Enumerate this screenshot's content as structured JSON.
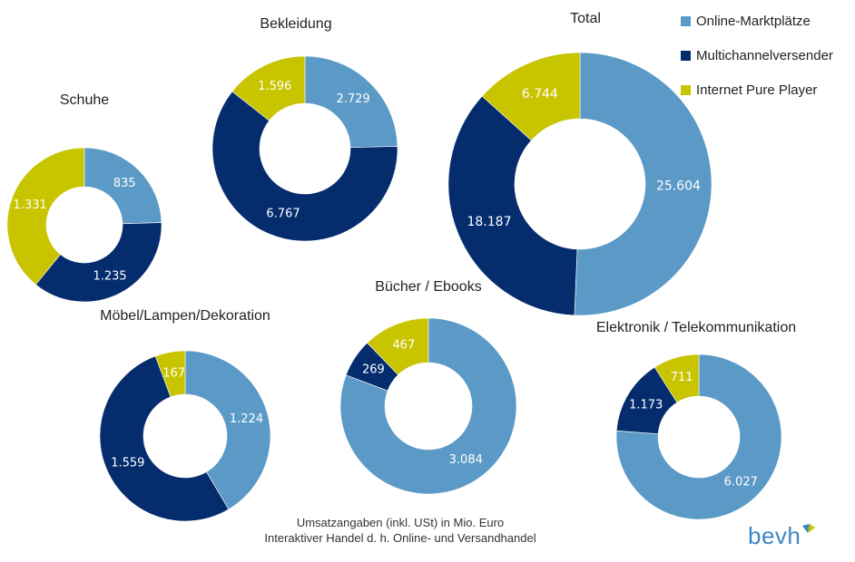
{
  "colors": {
    "online": "#5b9ac6",
    "multichannel": "#052d6e",
    "pure": "#c8c400",
    "label_dark": "#ffffff",
    "label_light": "#ffffff"
  },
  "legend": [
    {
      "label": "Online-Marktplätze",
      "color": "#5b9ac6"
    },
    {
      "label": "Multichannelversender",
      "color": "#052d6e"
    },
    {
      "label": "Internet Pure Player",
      "color": "#c8c400"
    }
  ],
  "chart_data": [
    {
      "type": "pie",
      "title": "Schuhe",
      "series": [
        "Online-Marktplätze",
        "Multichannelversender",
        "Internet Pure Player"
      ],
      "values": [
        835,
        1235,
        1331
      ],
      "labels": [
        "835",
        "1.235",
        "1.331"
      ]
    },
    {
      "type": "pie",
      "title": "Bekleidung",
      "series": [
        "Online-Marktplätze",
        "Multichannelversender",
        "Internet Pure Player"
      ],
      "values": [
        2729,
        6767,
        1596
      ],
      "labels": [
        "2.729",
        "6.767",
        "1.596"
      ]
    },
    {
      "type": "pie",
      "title": "Total",
      "series": [
        "Online-Marktplätze",
        "Multichannelversender",
        "Internet Pure Player"
      ],
      "values": [
        25604,
        18187,
        6744
      ],
      "labels": [
        "25.604",
        "18.187",
        "6.744"
      ]
    },
    {
      "type": "pie",
      "title": "Möbel/Lampen/Dekoration",
      "series": [
        "Online-Marktplätze",
        "Multichannelversender",
        "Internet Pure Player"
      ],
      "values": [
        1224,
        1559,
        167
      ],
      "labels": [
        "1.224",
        "1.559",
        "167"
      ]
    },
    {
      "type": "pie",
      "title": "Bücher / Ebooks",
      "series": [
        "Online-Marktplätze",
        "Multichannelversender",
        "Internet Pure Player"
      ],
      "values": [
        3084,
        269,
        467
      ],
      "labels": [
        "3.084",
        "269",
        "467"
      ]
    },
    {
      "type": "pie",
      "title": "Elektronik / Telekommunikation",
      "series": [
        "Online-Marktplätze",
        "Multichannelversender",
        "Internet Pure Player"
      ],
      "values": [
        6027,
        1173,
        711
      ],
      "labels": [
        "6.027",
        "1.173",
        "711"
      ]
    }
  ],
  "footer": {
    "line1": "Umsatzangaben (inkl. USt) in Mio. Euro",
    "line2": "Interaktiver Handel d. h. Online- und Versandhandel"
  },
  "logo": {
    "text": "bevh"
  }
}
